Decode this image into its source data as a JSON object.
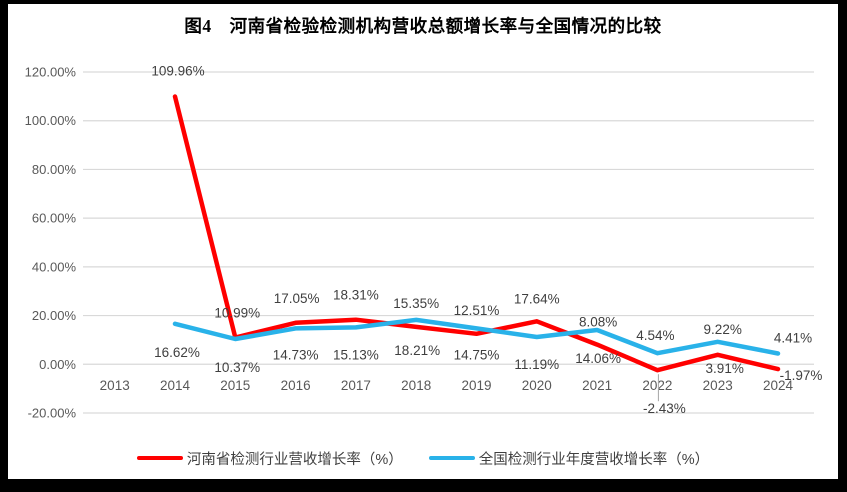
{
  "title": "图4　河南省检验检测机构营收总额增长率与全国情况的比较",
  "frame": {
    "background": "#000000",
    "chart_background": "#FFFFFF"
  },
  "chart_data": {
    "type": "line",
    "title": "图4　河南省检验检测机构营收总额增长率与全国情况的比较",
    "categories": [
      "2013",
      "2014",
      "2015",
      "2016",
      "2017",
      "2018",
      "2019",
      "2020",
      "2021",
      "2022",
      "2023",
      "2024"
    ],
    "series": [
      {
        "id": "henan",
        "name": "河南省检测行业营收增长率（%）",
        "color": "#FF0000",
        "values": [
          null,
          109.96,
          10.99,
          17.05,
          18.31,
          15.35,
          12.51,
          17.64,
          8.08,
          -2.43,
          3.91,
          -1.97
        ],
        "label_offsets": [
          null,
          [
            3,
            -21
          ],
          [
            2,
            -20
          ],
          [
            1,
            -20
          ],
          [
            0,
            -20
          ],
          [
            0,
            -19
          ],
          [
            0,
            -19
          ],
          [
            0,
            -18
          ],
          [
            1,
            -18
          ],
          [
            7,
            43
          ],
          [
            7,
            18
          ],
          [
            23,
            11
          ]
        ],
        "leader_point_indexes": [
          9
        ]
      },
      {
        "id": "national",
        "name": "全国检测行业年度营收增长率（%）",
        "color": "#29B2E9",
        "values": [
          null,
          16.62,
          10.37,
          14.73,
          15.13,
          18.21,
          14.75,
          11.19,
          14.06,
          4.54,
          9.22,
          4.41
        ],
        "label_offsets": [
          null,
          [
            2,
            33
          ],
          [
            2,
            33
          ],
          [
            0,
            31
          ],
          [
            0,
            32
          ],
          [
            1,
            35
          ],
          [
            0,
            31
          ],
          [
            0,
            32
          ],
          [
            1,
            33
          ],
          [
            -2,
            -13
          ],
          [
            5,
            -8
          ],
          [
            15,
            -11
          ]
        ],
        "leader_point_indexes": []
      }
    ],
    "y_axis": {
      "min": -20,
      "max": 120,
      "step": 20,
      "tick_labels": [
        "120.00%",
        "100.00%",
        "80.00%",
        "60.00%",
        "40.00%",
        "20.00%",
        "0.00%",
        "-20.00%"
      ],
      "value_format": "0.00%"
    },
    "grid": true,
    "gridline_color": "#D9D9D9",
    "label_color": "#3F3F3F",
    "axis_text_color": "#595959",
    "leader_line_color": "#A6A6A6",
    "legend_position": "bottom"
  }
}
